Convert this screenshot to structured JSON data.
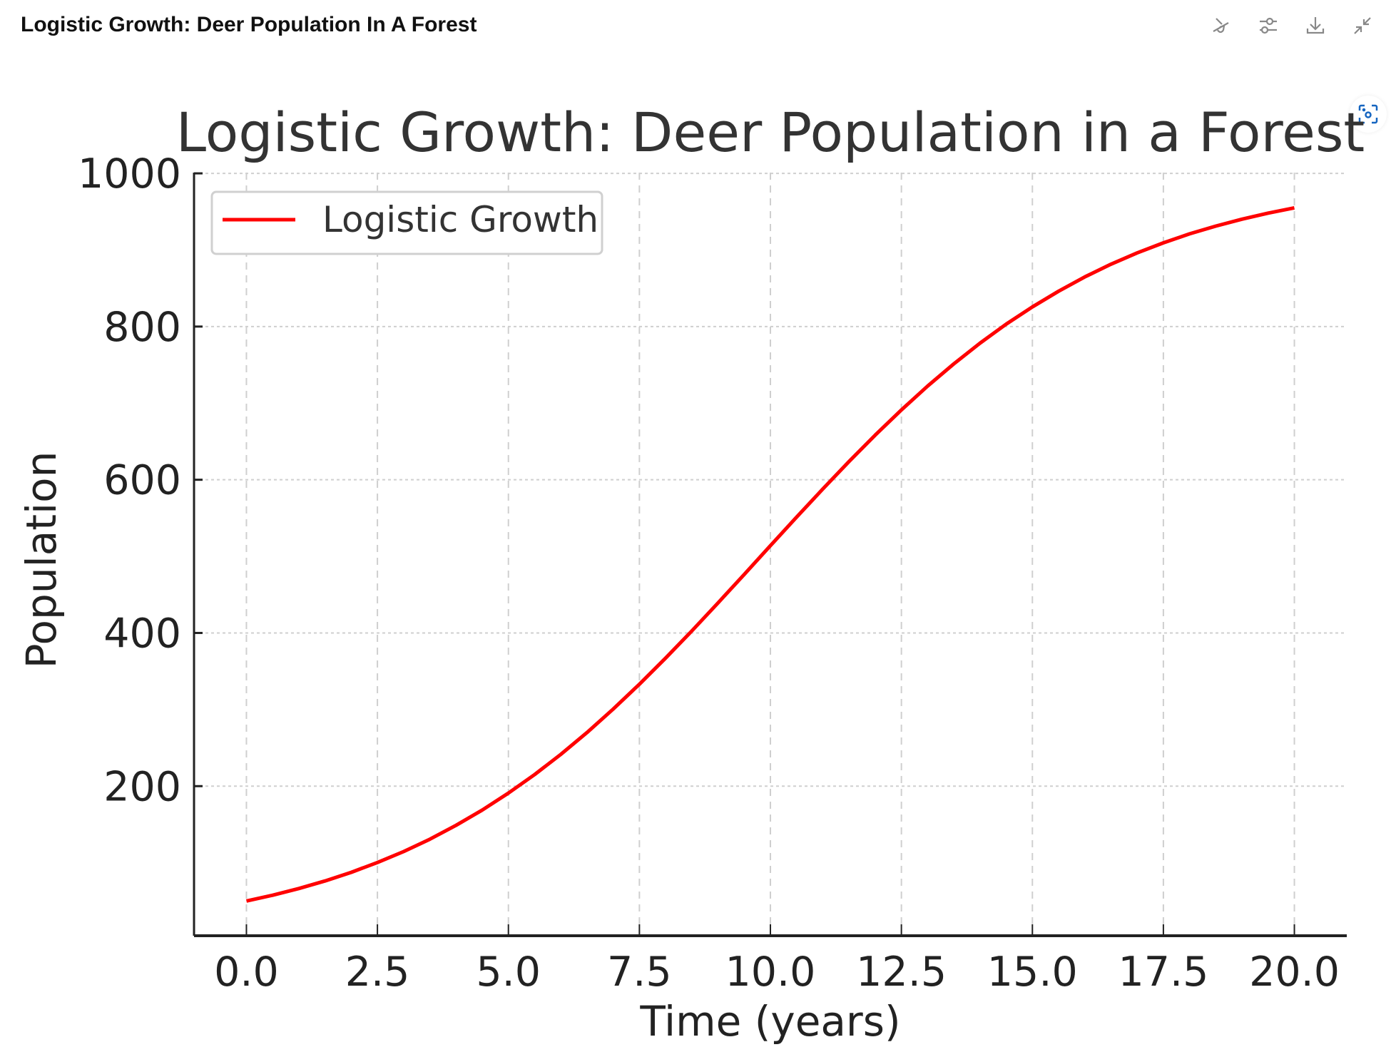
{
  "header": {
    "title": "Logistic Growth: Deer Population In A Forest",
    "icons": [
      "no-interact-icon",
      "sliders-icon",
      "download-icon",
      "collapse-icon"
    ],
    "screenshot_icon": "screenshot-icon"
  },
  "chart_data": {
    "type": "line",
    "title": "Logistic Growth: Deer Population in a Forest",
    "xlabel": "Time (years)",
    "ylabel": "Population",
    "xlim": [
      -1,
      21
    ],
    "ylim": [
      4.7,
      1001
    ],
    "xticks": [
      "0.0",
      "2.5",
      "5.0",
      "7.5",
      "10.0",
      "12.5",
      "15.0",
      "17.5",
      "20.0"
    ],
    "yticks": [
      "200",
      "400",
      "600",
      "800",
      "1000"
    ],
    "grid": true,
    "legend": "top-left",
    "series": [
      {
        "name": "Logistic Growth",
        "color": "#ff0000",
        "x": [
          0,
          0.5,
          1,
          1.5,
          2,
          2.5,
          3,
          3.5,
          4,
          4.5,
          5,
          5.5,
          6,
          6.5,
          7,
          7.5,
          8,
          8.5,
          9,
          9.5,
          10,
          10.5,
          11,
          11.5,
          12,
          12.5,
          13,
          13.5,
          14,
          14.5,
          15,
          15.5,
          16,
          16.5,
          17,
          17.5,
          18,
          18.5,
          19,
          19.5,
          20
        ],
        "y": [
          50.0,
          57.6,
          66.3,
          76.2,
          87.5,
          100.3,
          114.6,
          130.7,
          148.8,
          168.8,
          190.9,
          215.1,
          241.5,
          270.0,
          300.6,
          333.1,
          367.2,
          402.6,
          439.2,
          476.4,
          513.9,
          551.2,
          588.0,
          623.8,
          658.3,
          691.1,
          722.3,
          751.3,
          778.3,
          803.1,
          825.7,
          846.2,
          864.8,
          881.4,
          896.2,
          909.3,
          921.0,
          931.2,
          940.2,
          948.1,
          955.0
        ]
      }
    ]
  }
}
